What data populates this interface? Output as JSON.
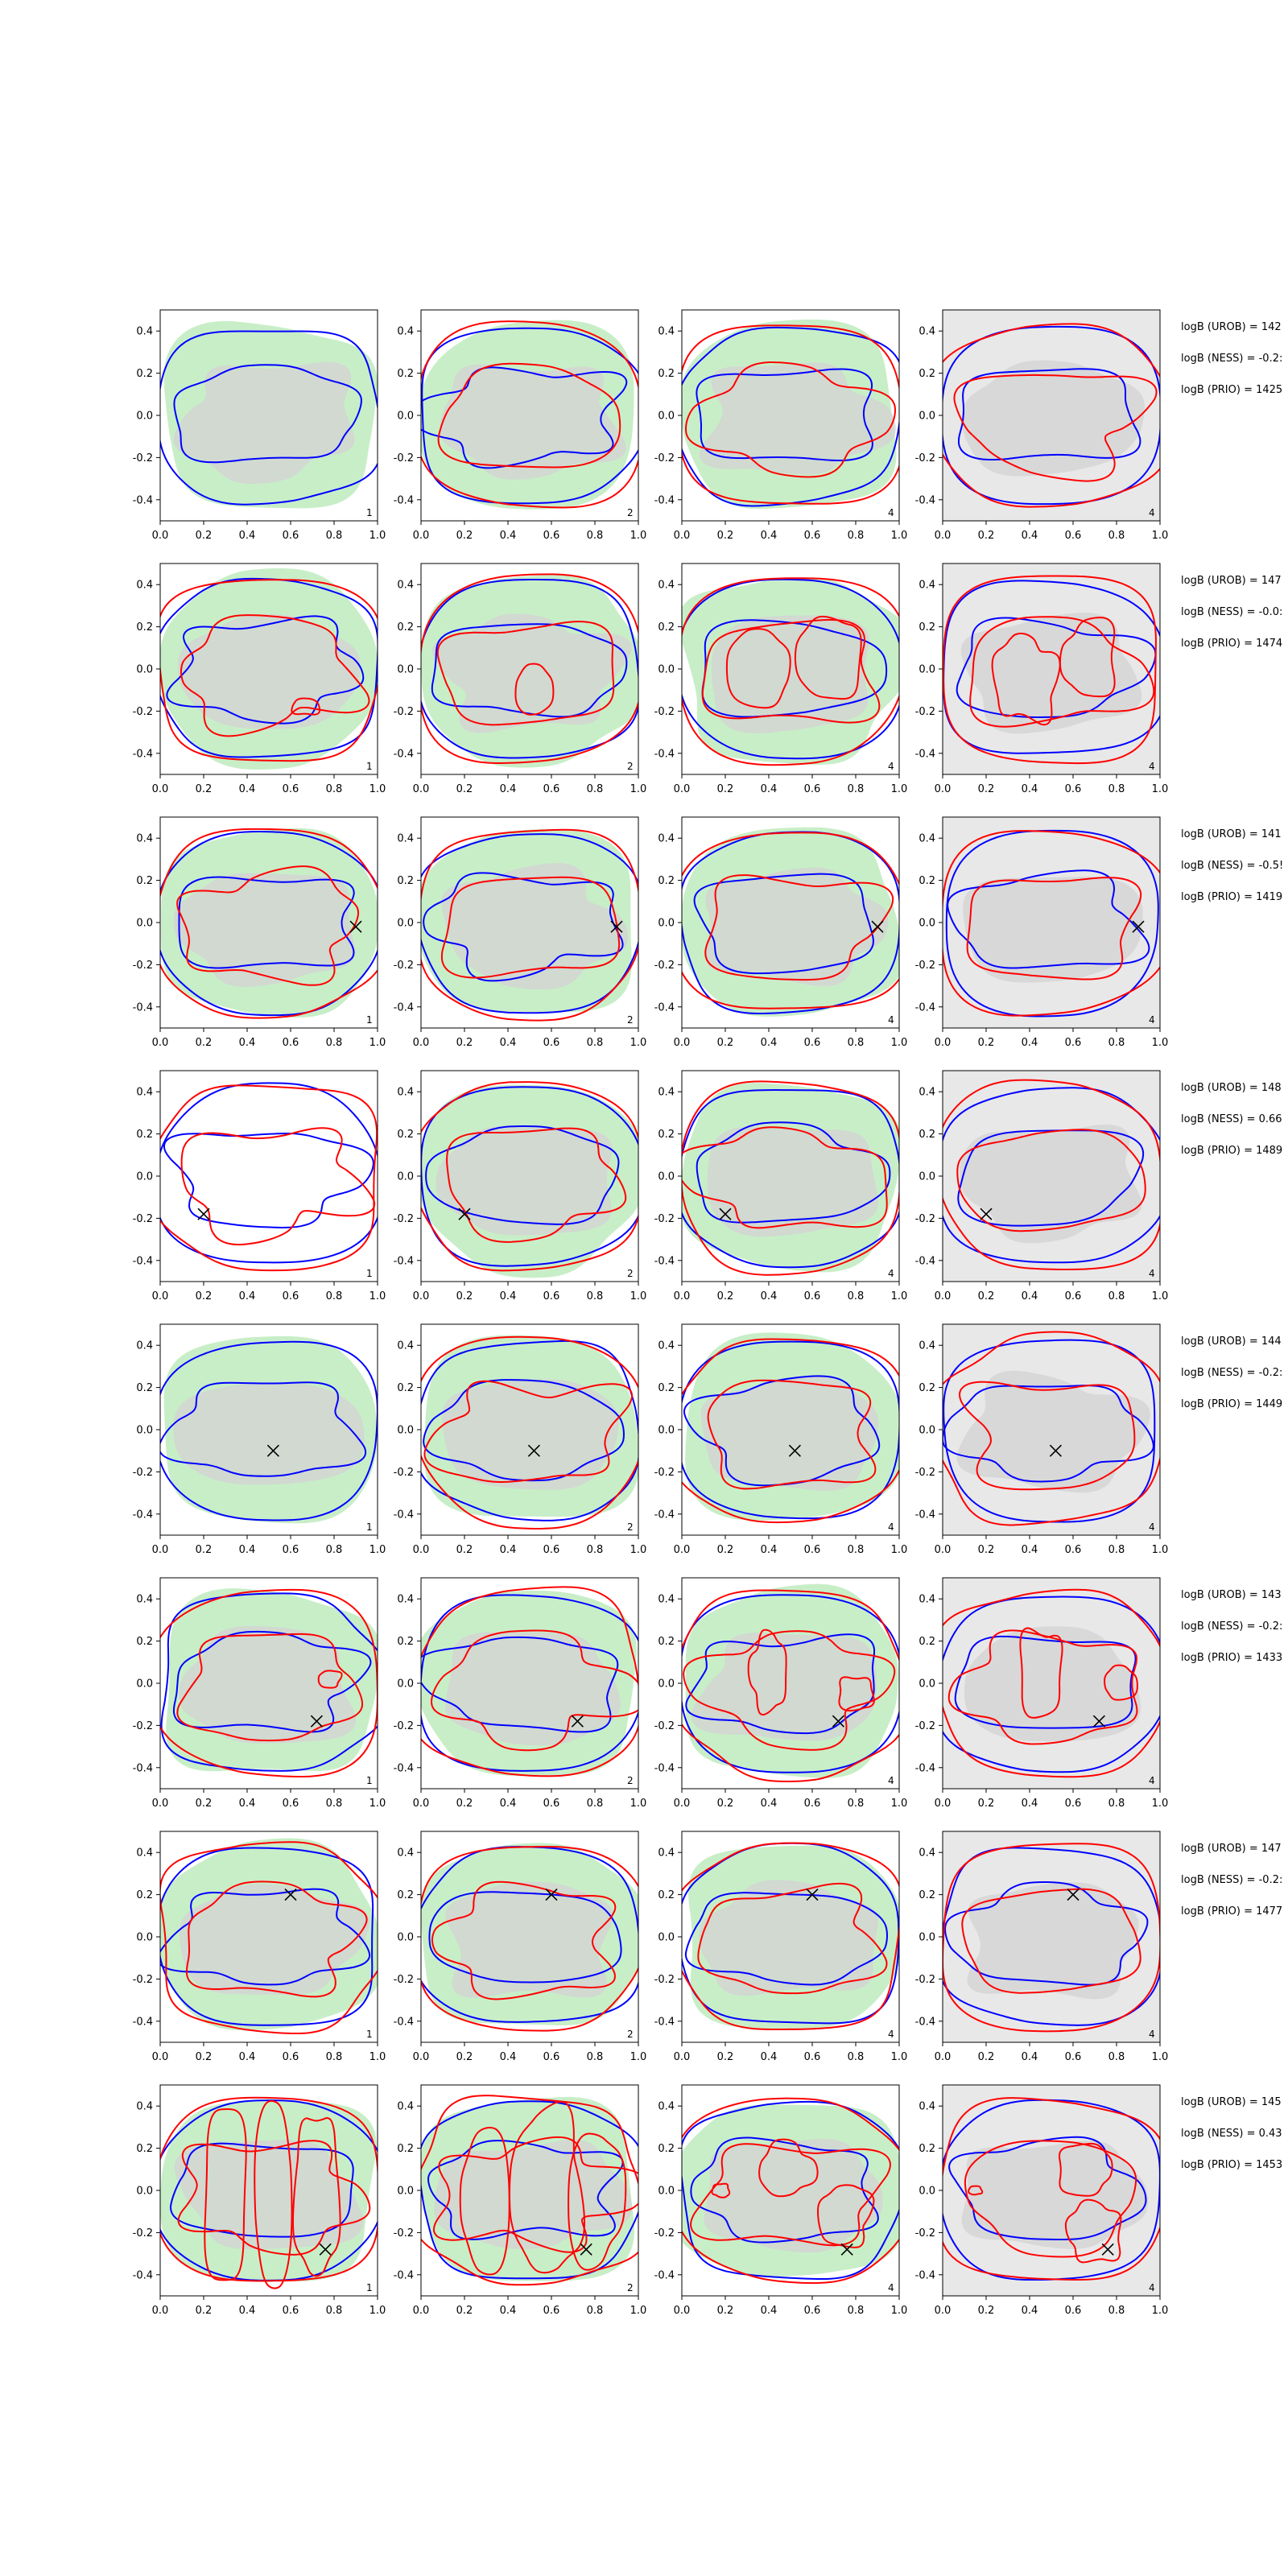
{
  "chart_data": {
    "type": "contour",
    "grid": {
      "rows": 8,
      "cols": 4
    },
    "xlim": [
      0,
      1
    ],
    "ylim": [
      -0.5,
      0.5
    ],
    "xticks": [
      "0.0",
      "0.2",
      "0.4",
      "0.6",
      "0.8",
      "1.0"
    ],
    "yticks": [
      "0.4",
      "0.2",
      "0.0",
      "-0.2",
      "-0.4"
    ],
    "panel_labels": [
      "1",
      "2",
      "4",
      "4"
    ],
    "colors": {
      "blue": "#0000ff",
      "red": "#ff0000",
      "green_fill": "#c8eec8",
      "gray_fill": "#d3d3d3",
      "panel4_bg": "#e8e8e8"
    },
    "rows": [
      {
        "marker": null,
        "annotations": [
          "logB (UROB) = 142",
          "logB (NESS) = -0.2:",
          "logB (PRIO) = 1425"
        ]
      },
      {
        "marker": null,
        "annotations": [
          "logB (UROB) = 147",
          "logB (NESS) = -0.0:",
          "logB (PRIO) = 1474"
        ]
      },
      {
        "marker": [
          0.9,
          -0.02
        ],
        "annotations": [
          "logB (UROB) = 141",
          "logB (NESS) = -0.5!",
          "logB (PRIO) = 1419"
        ]
      },
      {
        "marker": [
          0.2,
          -0.18
        ],
        "annotations": [
          "logB (UROB) = 148",
          "logB (NESS) = 0.66",
          "logB (PRIO) = 1489"
        ]
      },
      {
        "marker": [
          0.52,
          -0.1
        ],
        "annotations": [
          "logB (UROB) = 144",
          "logB (NESS) = -0.2:",
          "logB (PRIO) = 1449"
        ]
      },
      {
        "marker": [
          0.72,
          -0.18
        ],
        "annotations": [
          "logB (UROB) = 143",
          "logB (NESS) = -0.2:",
          "logB (PRIO) = 1433"
        ]
      },
      {
        "marker": [
          0.6,
          0.2
        ],
        "annotations": [
          "logB (UROB) = 147",
          "logB (NESS) = -0.2:",
          "logB (PRIO) = 1477"
        ]
      },
      {
        "marker": [
          0.76,
          -0.28
        ],
        "annotations": [
          "logB (UROB) = 145",
          "logB (NESS) = 0.43",
          "logB (PRIO) = 1453"
        ]
      }
    ]
  }
}
